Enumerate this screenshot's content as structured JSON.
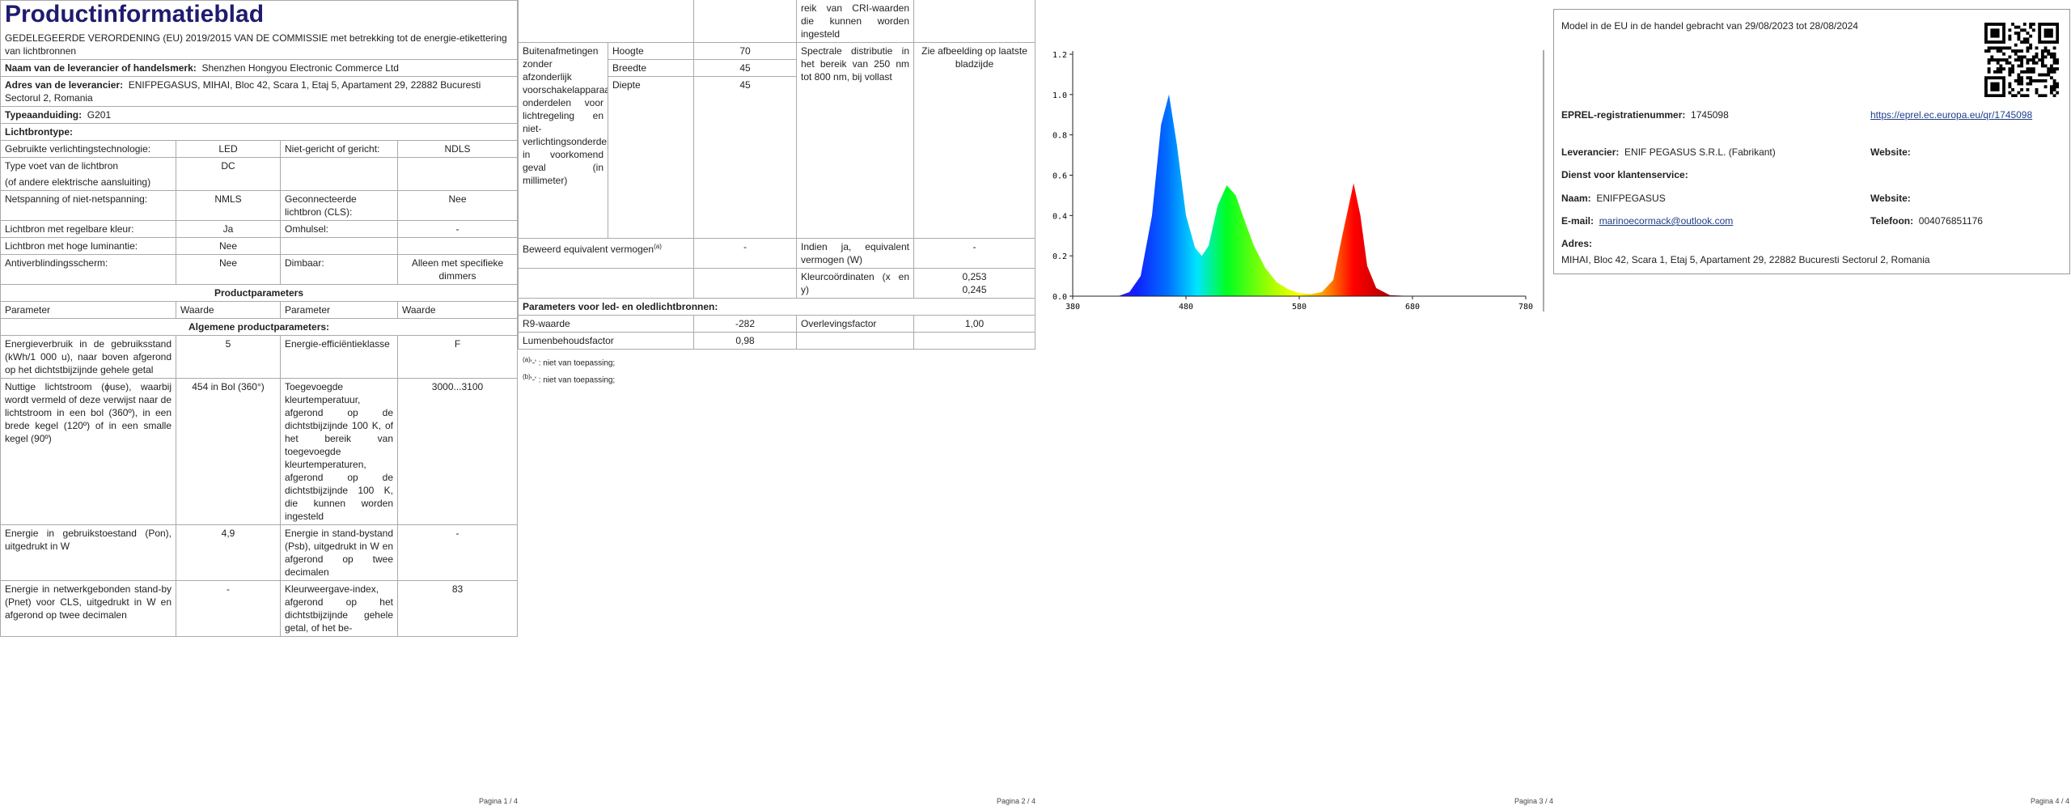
{
  "page1": {
    "title": "Productinformatieblad",
    "regulation": "GEDELEGEERDE VERORDENING (EU) 2019/2015 VAN DE COMMISSIE met betrekking tot de energie-etikettering van lichtbronnen",
    "supplier_name": {
      "label": "Naam van de leverancier of handelsmerk:",
      "value": "Shenzhen Hongyou Electronic Commerce Ltd"
    },
    "supplier_address": {
      "label": "Adres van de leverancier:",
      "value": "ENIFPEGASUS, MIHAI, Bloc 42, Scara 1, Etaj 5, Apartament 29, 22882 Bucuresti Sectorul 2, Romania"
    },
    "model": {
      "label": "Typeaanduiding:",
      "value": "G201"
    },
    "light_source_type": "Lichtbrontype:",
    "light_rows": [
      [
        "Gebruikte verlichtingstechnologie:",
        "LED",
        "Niet-gericht of gericht:",
        "NDLS"
      ],
      [
        "Type voet van de lichtbron",
        "DC"
      ],
      [
        "(of andere elektrische aansluiting)"
      ],
      [
        "Netspanning of niet-netspanning:",
        "NMLS",
        "Geconnecteerde lichtbron (CLS):",
        "Nee"
      ],
      [
        "Lichtbron met regelbare kleur:",
        "Ja",
        "Omhulsel:",
        "-"
      ],
      [
        "Lichtbron met hoge luminantie:",
        "Nee"
      ],
      [
        "Antiverblindingsscherm:",
        "Nee",
        "Dimbaar:",
        "Alleen met specifieke dimmers"
      ]
    ],
    "product_parameters": "Productparameters",
    "header": [
      "Parameter",
      "Waarde",
      "Parameter",
      "Waarde"
    ],
    "general": "Algemene productparameters:",
    "param_rows": [
      [
        "Energieverbruik in de gebruiksstand (kWh/1 000 u), naar boven afgerond op het dichtstbijzijnde gehele getal",
        "5",
        "Energie-efficiëntieklasse",
        "F"
      ],
      [
        "Nuttige lichtstroom (ɸuse), waarbij wordt vermeld of deze verwijst naar de lichtstroom in een bol (360º), in een brede kegel (120º) of in een smalle kegel (90º)",
        "454 in Bol (360°)",
        "Toegevoegde kleurtemperatuur, afgerond op de dichtstbijzijnde 100 K, of het bereik van toegevoegde kleurtemperaturen, afgerond op de dichtstbijzijnde 100 K, die kunnen worden ingesteld",
        "3000...3100"
      ],
      [
        "Energie in gebruikstoestand (Pon), uitgedrukt in W",
        "4,9",
        "Energie in stand-bystand (Psb), uitgedrukt in W en afgerond op twee decimalen",
        "-"
      ],
      [
        "Energie in netwerkgebonden stand-by (Pnet) voor CLS, uitgedrukt in W en afgerond op twee decimalen",
        "-",
        "Kleurweergave-index, afgerond op het dichtstbijzijnde gehele getal, of het be-",
        "83"
      ]
    ],
    "footer": "Pagina 1 / 4"
  },
  "page2": {
    "continued": "reik van CRI-waarden die kunnen worden ingesteld",
    "dimensions": {
      "label": "Buitenafmetingen zonder afzonderlijk voorschakelapparaat, onderdelen voor lichtregeling en niet-verlichtingsonderdelen, in voorkomend geval (in millimeter)",
      "rows": [
        [
          "Hoogte",
          "70"
        ],
        [
          "Breedte",
          "45"
        ],
        [
          "Diepte",
          "45"
        ]
      ]
    },
    "spectral": [
      "Spectrale distributie in het bereik van 250 nm tot 800 nm, bij vollast",
      "Zie afbeelding op laatste bladzijde"
    ],
    "equivalent": {
      "label": "Beweerd equivalent vermogen",
      "note": "(a)",
      "value": "-",
      "label2": "Indien ja, equivalent vermogen (W)",
      "value2": "-"
    },
    "chromaticity": {
      "label": "Kleurcoördinaten (x en y)",
      "x": "0,253",
      "y": "0,245"
    },
    "led_title": "Parameters voor led- en oledlichtbronnen:",
    "led_rows": [
      [
        "R9-waarde",
        "-282",
        "Overlevingsfactor",
        "1,00"
      ],
      [
        "Lumenbehoudsfactor",
        "0,98"
      ]
    ],
    "notes": [
      [
        "(a)",
        "'-' : niet van toepassing;"
      ],
      [
        "(b)",
        "'-' : niet van toepassing;"
      ]
    ],
    "footer": "Pagina 2 / 4"
  },
  "page3": {
    "spectrum": {
      "x": [
        420,
        430,
        440,
        450,
        458,
        465,
        472,
        480,
        488,
        494,
        500,
        508,
        516,
        524,
        532,
        540,
        550,
        560,
        570,
        580,
        590,
        600,
        610,
        618,
        628,
        634,
        640,
        648,
        660,
        680
      ],
      "y": [
        0,
        0.02,
        0.1,
        0.4,
        0.85,
        1.0,
        0.75,
        0.4,
        0.24,
        0.2,
        0.25,
        0.45,
        0.55,
        0.5,
        0.37,
        0.25,
        0.14,
        0.07,
        0.035,
        0.015,
        0.01,
        0.02,
        0.08,
        0.3,
        0.56,
        0.4,
        0.15,
        0.04,
        0.005,
        0
      ],
      "xlim": [
        380,
        780
      ],
      "ylim": [
        0,
        1.2
      ],
      "xticks": [
        380,
        480,
        580,
        680,
        780
      ],
      "yticks": [
        {
          "value": 0,
          "label": "0.0"
        },
        0.2,
        0.4,
        0.6,
        0.8,
        {
          "value": 1,
          "label": "1.0"
        },
        1.2
      ]
    },
    "footer": "Pagina 3 / 4"
  },
  "page4": {
    "market": "Model in de EU in de handel gebracht van 29/08/2023 tot 28/08/2024",
    "eprel": {
      "label": "EPREL-registratienummer:",
      "value": "1745098",
      "url": "https://eprel.ec.europa.eu/qr/1745098"
    },
    "supplier": {
      "label": "Leverancier:",
      "value": "ENIF PEGASUS S.R.L. (Fabrikant)",
      "website": "Website:"
    },
    "service": "Dienst voor klantenservice:",
    "name": {
      "label": "Naam:",
      "value": "ENIFPEGASUS",
      "website": "Website:"
    },
    "email": {
      "label": "E-mail:",
      "value": "marinoecormack@outlook.com",
      "phone_label": "Telefoon:",
      "phone": "004076851176"
    },
    "address": {
      "label": "Adres:",
      "value": "MIHAI, Bloc 42, Scara 1, Etaj 5, Apartament 29, 22882 Bucuresti Sectorul 2, Romania"
    },
    "footer": "Pagina 4 / 4"
  }
}
